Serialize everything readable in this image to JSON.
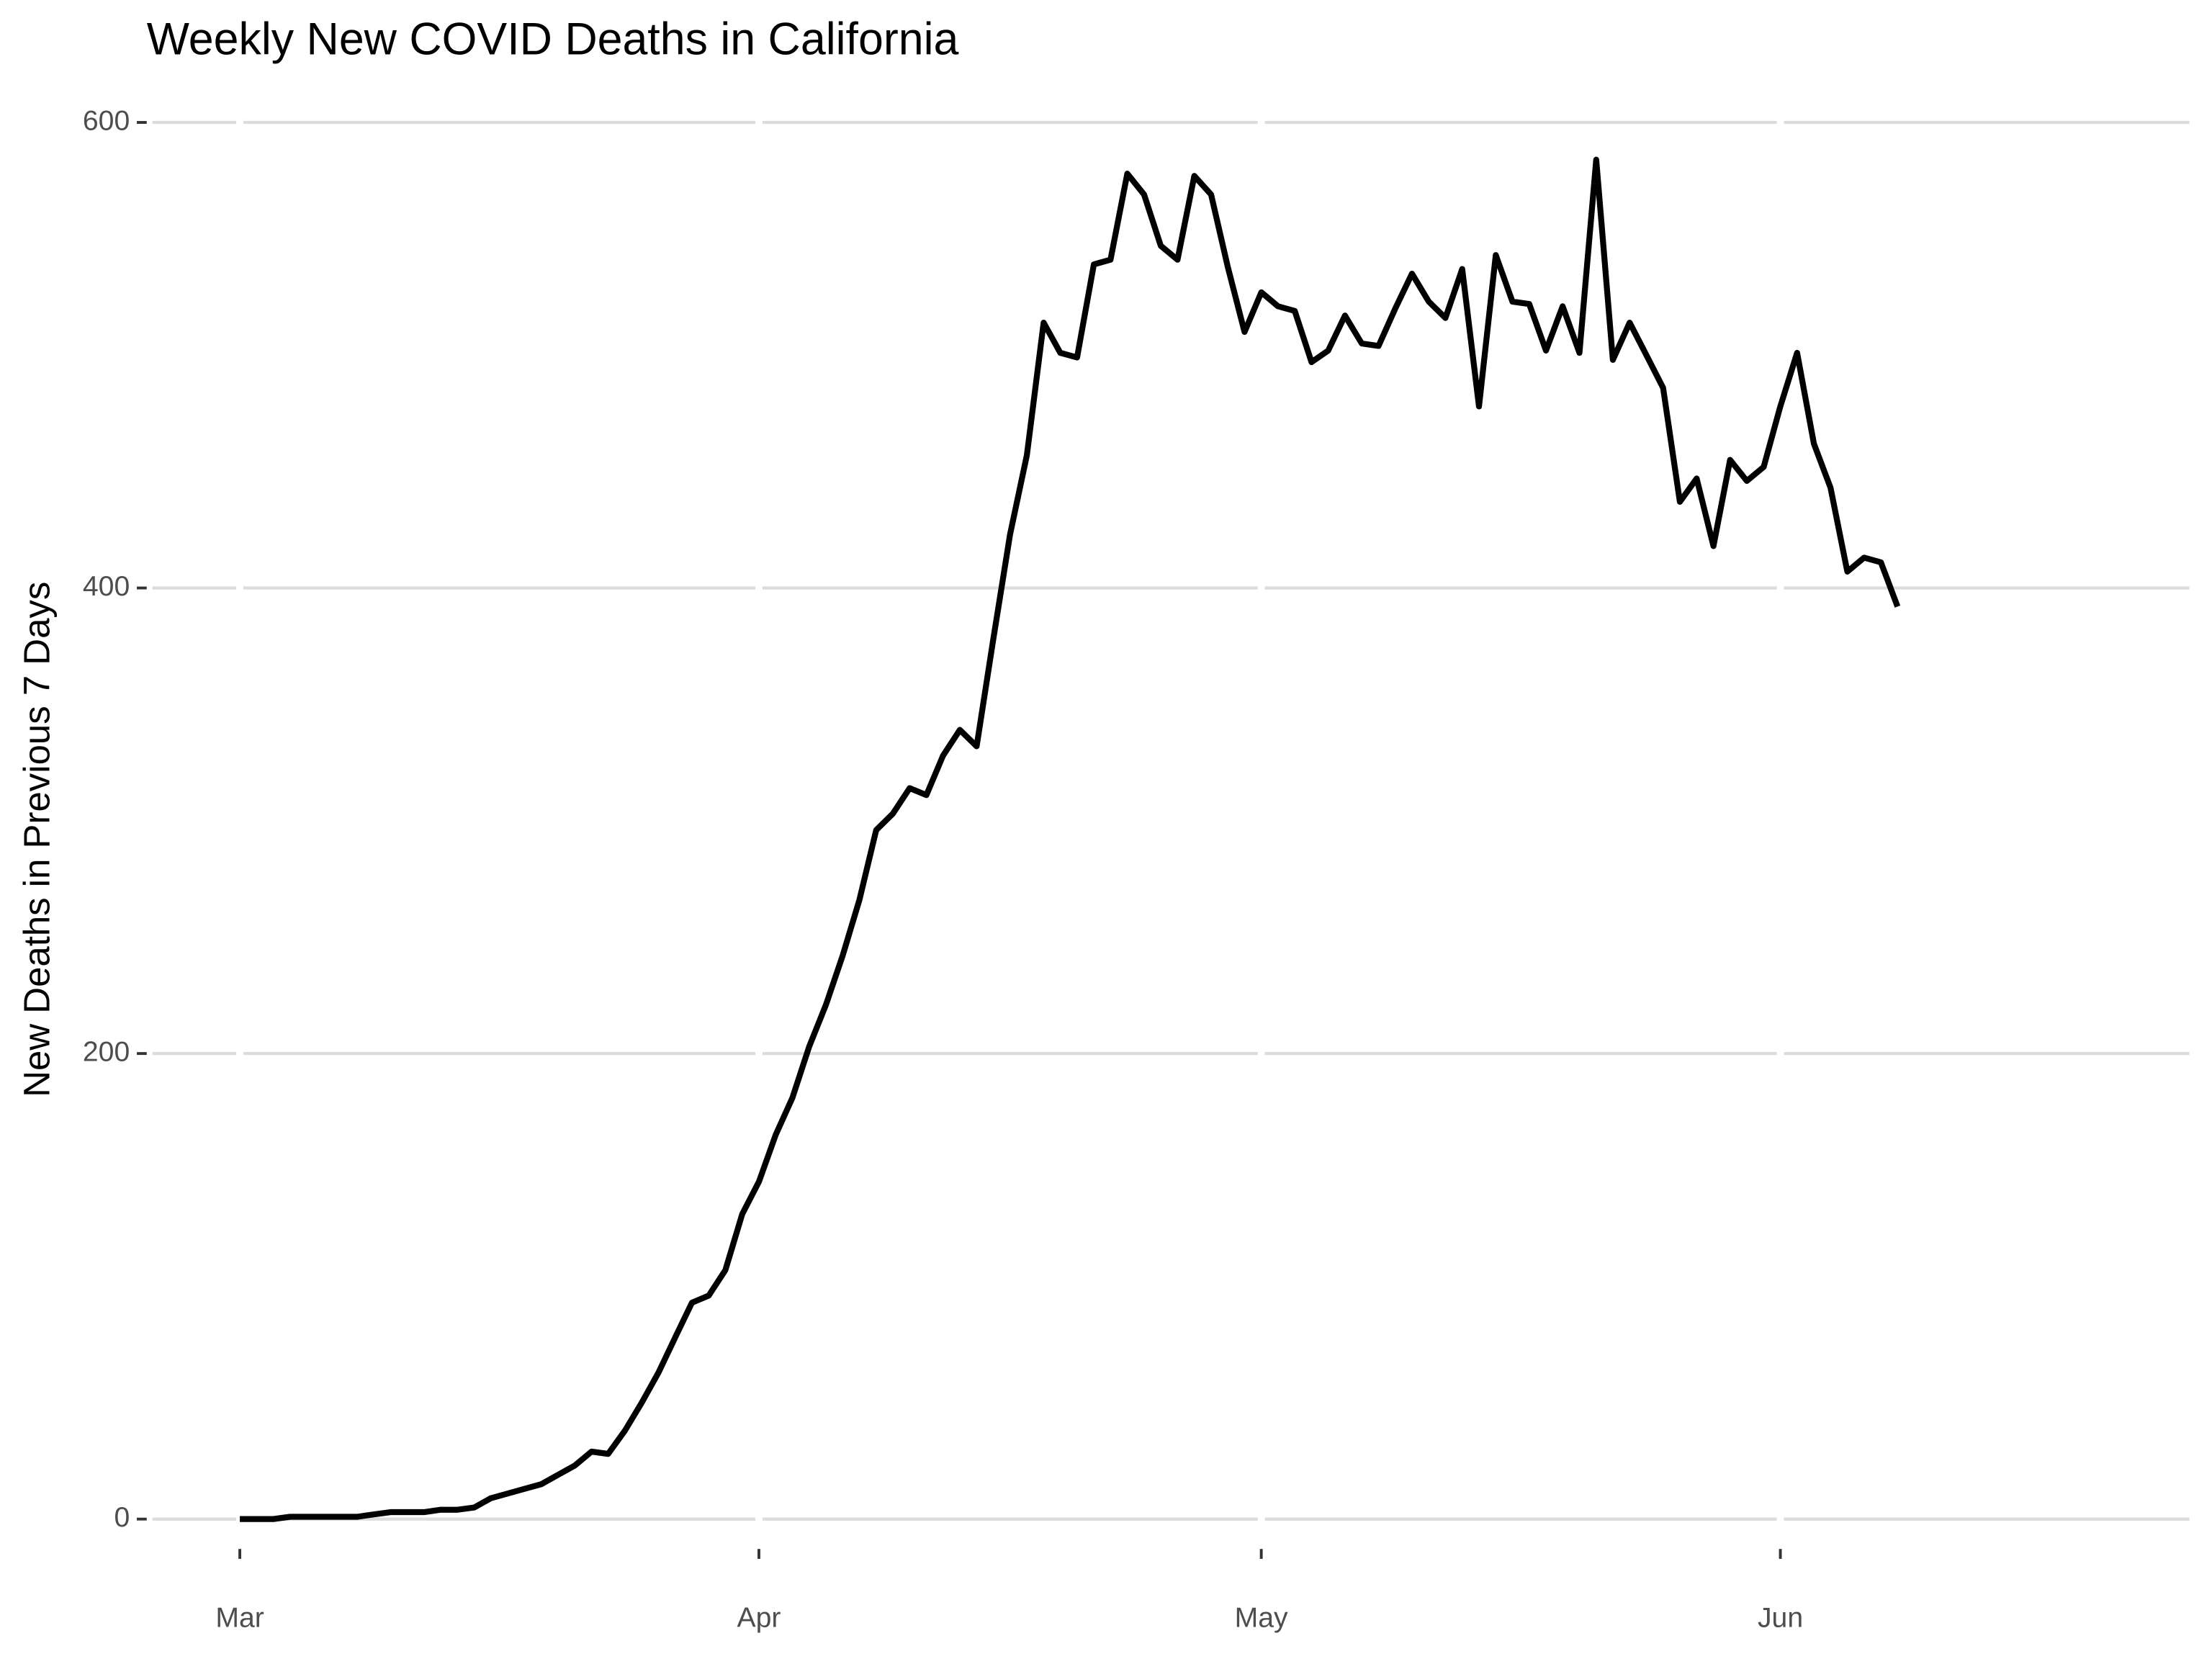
{
  "chart_data": {
    "type": "line",
    "title": "Weekly New COVID Deaths in California",
    "y_label": "New Deaths in Previous 7 Days",
    "categories": [
      "Mar",
      null,
      null,
      null,
      null,
      null,
      null,
      null,
      null,
      null,
      null,
      null,
      null,
      null,
      null,
      null,
      null,
      null,
      null,
      null,
      null,
      null,
      null,
      null,
      null,
      null,
      null,
      null,
      null,
      null,
      null,
      "Apr",
      null,
      null,
      null,
      null,
      null,
      null,
      null,
      null,
      null,
      null,
      null,
      null,
      null,
      null,
      null,
      null,
      null,
      null,
      null,
      null,
      null,
      null,
      null,
      null,
      null,
      null,
      null,
      null,
      null,
      "May",
      null,
      null,
      null,
      null,
      null,
      null,
      null,
      null,
      null,
      null,
      null,
      null,
      null,
      null,
      null,
      null,
      null,
      null,
      null,
      null,
      null,
      null,
      null,
      null,
      null,
      null,
      null,
      null,
      null,
      null,
      "Jun",
      null,
      null,
      null,
      null,
      null,
      null,
      null
    ],
    "series": [
      {
        "color": "#000000",
        "values": [
          0,
          0,
          0,
          1,
          1,
          1,
          1,
          1,
          2,
          3,
          3,
          3,
          4,
          4,
          5,
          9,
          11,
          13,
          15,
          19,
          23,
          29,
          28,
          38,
          50,
          63,
          78,
          93,
          96,
          107,
          131,
          145,
          165,
          181,
          203,
          221,
          242,
          266,
          296,
          303,
          314,
          311,
          328,
          339,
          332,
          378,
          423,
          457,
          514,
          501,
          499,
          539,
          541,
          578,
          569,
          547,
          541,
          577,
          569,
          538,
          510,
          527,
          521,
          519,
          497,
          502,
          517,
          505,
          504,
          520,
          535,
          523,
          516,
          537,
          478,
          543,
          523,
          522,
          502,
          521,
          501,
          584,
          498,
          514,
          500,
          486,
          437,
          447,
          418,
          455,
          446,
          452,
          478,
          501,
          462,
          443,
          407,
          413,
          411,
          392
        ]
      }
    ],
    "ylim": [
      -29.2,
      613.2
    ],
    "yticks": [
      0,
      200,
      400,
      600
    ],
    "grid": true
  }
}
